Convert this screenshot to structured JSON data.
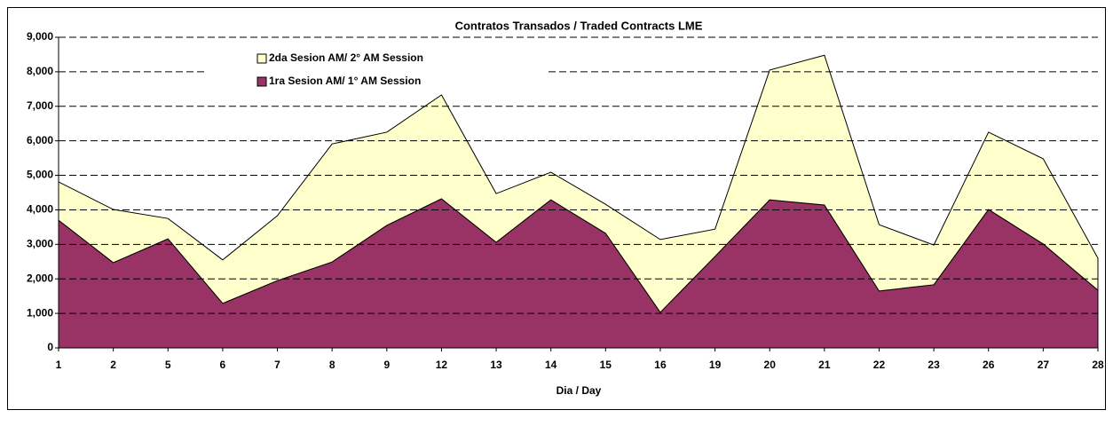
{
  "chart_data": {
    "type": "stacked_area",
    "title": "Contratos  Transados / Traded Contracts LME",
    "x_label": "Dia / Day",
    "categories": [
      "1",
      "2",
      "5",
      "6",
      "7",
      "8",
      "9",
      "12",
      "13",
      "14",
      "15",
      "16",
      "19",
      "20",
      "21",
      "22",
      "23",
      "26",
      "27",
      "28"
    ],
    "series": [
      {
        "name": "1ra Sesion AM/ 1° AM Session",
        "color": "#993366",
        "values": [
          3700,
          2470,
          3160,
          1290,
          1950,
          2490,
          3550,
          4320,
          3060,
          4290,
          3320,
          1030,
          2650,
          4290,
          4140,
          1650,
          1830,
          4010,
          3010,
          1670
        ]
      },
      {
        "name": "2da Sesion AM/ 2° AM Session",
        "color": "#ffffcc",
        "values": [
          1110,
          1540,
          590,
          1260,
          1880,
          3420,
          2700,
          3010,
          1410,
          800,
          840,
          2110,
          790,
          3760,
          4340,
          1920,
          1150,
          2240,
          2470,
          930
        ]
      }
    ],
    "ylim": [
      0,
      9000
    ],
    "yticks": [
      0,
      {
        "value": 1000,
        "label": "1,000"
      },
      {
        "value": 2000,
        "label": "2,000"
      },
      {
        "value": 3000,
        "label": "3,000"
      },
      {
        "value": 4000,
        "label": "4,000"
      },
      {
        "value": 5000,
        "label": "5,000"
      },
      {
        "value": 6000,
        "label": "6,000"
      },
      {
        "value": 7000,
        "label": "7,000"
      },
      {
        "value": 8000,
        "label": "8,000"
      },
      {
        "value": 9000,
        "label": "9,000"
      }
    ],
    "grid": true,
    "legend": "top-left"
  }
}
